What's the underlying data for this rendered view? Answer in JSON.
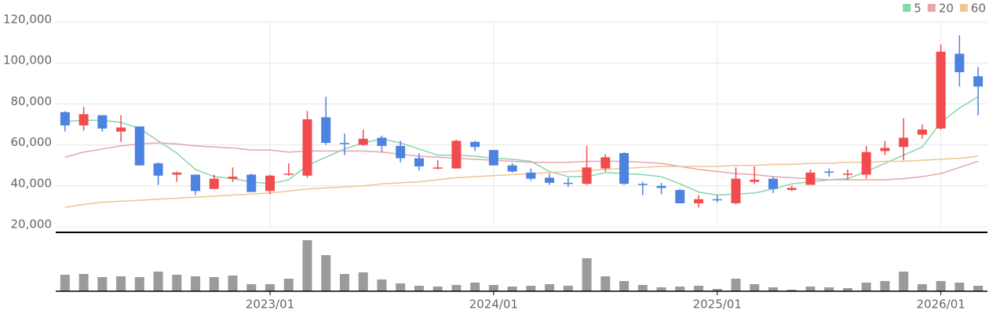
{
  "chart_data": {
    "type": "candlestick",
    "categories": [
      null,
      null,
      null,
      null,
      null,
      null,
      null,
      null,
      null,
      null,
      null,
      "2023/01",
      null,
      null,
      null,
      null,
      null,
      null,
      null,
      null,
      null,
      null,
      null,
      "2024/01",
      null,
      null,
      null,
      null,
      null,
      null,
      null,
      null,
      null,
      null,
      null,
      "2025/01",
      null,
      null,
      null,
      null,
      null,
      null,
      null,
      null,
      null,
      null,
      null,
      "2026/01",
      null,
      null
    ],
    "open": [
      76000,
      69500,
      74500,
      66500,
      69000,
      51000,
      45500,
      45500,
      38500,
      43500,
      45500,
      37500,
      45500,
      45000,
      73500,
      61000,
      60000,
      63500,
      59500,
      53500,
      48500,
      48500,
      61500,
      57500,
      50000,
      46500,
      44000,
      41500,
      41000,
      48500,
      56000,
      41000,
      40000,
      38000,
      31500,
      33500,
      31500,
      42000,
      43500,
      38000,
      40500,
      47000,
      45500,
      45500,
      57000,
      59000,
      65000,
      68000,
      104500,
      93500
    ],
    "high": [
      76500,
      78500,
      74500,
      74500,
      69000,
      51500,
      47000,
      45500,
      45500,
      49000,
      46000,
      45500,
      51000,
      76500,
      83500,
      65500,
      67500,
      64500,
      62000,
      56000,
      52500,
      62500,
      62000,
      57500,
      51000,
      48500,
      46000,
      44000,
      59500,
      55500,
      56500,
      42000,
      41500,
      38500,
      35500,
      35500,
      49000,
      49500,
      44500,
      40000,
      48000,
      48500,
      48000,
      59500,
      62000,
      73000,
      70000,
      109000,
      113500,
      98000
    ],
    "low": [
      66500,
      67000,
      66500,
      61500,
      50000,
      40500,
      42000,
      35500,
      38500,
      42000,
      37000,
      36000,
      45000,
      44000,
      60000,
      55000,
      59500,
      56500,
      51500,
      47500,
      48000,
      48500,
      57000,
      50000,
      46500,
      42500,
      40500,
      39500,
      40500,
      47000,
      40500,
      35500,
      36000,
      31500,
      29500,
      32000,
      31000,
      41000,
      36500,
      37500,
      40500,
      44500,
      43000,
      43500,
      55000,
      52500,
      63000,
      67500,
      88500,
      74500
    ],
    "close": [
      69500,
      75000,
      68000,
      68500,
      50000,
      45000,
      46500,
      37500,
      43500,
      44500,
      37000,
      45000,
      46000,
      72500,
      61000,
      60500,
      63000,
      59500,
      53500,
      49500,
      49000,
      62000,
      59000,
      50000,
      47000,
      43500,
      41500,
      41000,
      49000,
      54000,
      41000,
      40500,
      39000,
      31500,
      33500,
      33000,
      43500,
      43000,
      38500,
      39000,
      46500,
      46500,
      46000,
      56500,
      58500,
      63500,
      67500,
      105500,
      95500,
      88500
    ],
    "up_color": "#f24b4e",
    "down_color": "#4c82e0",
    "series": [
      {
        "name": "5",
        "color": "#86d6ab",
        "values": [
          71500,
          72000,
          72000,
          71000,
          68000,
          62000,
          56000,
          48000,
          44500,
          43500,
          42000,
          41000,
          43000,
          50000,
          54000,
          58000,
          61000,
          63000,
          61000,
          58000,
          55000,
          55000,
          54500,
          53500,
          53000,
          52000,
          47000,
          44500,
          44500,
          46500,
          46000,
          45500,
          44500,
          41000,
          37000,
          35500,
          36000,
          36500,
          38500,
          41000,
          42000,
          43000,
          43500,
          47000,
          51000,
          55000,
          59000,
          71000,
          78000,
          83500
        ]
      },
      {
        "name": "20",
        "color": "#e8a5ab",
        "values": [
          54000,
          56500,
          58000,
          59500,
          60500,
          61000,
          60500,
          59500,
          59000,
          58500,
          57500,
          57500,
          56500,
          57000,
          57000,
          57000,
          57000,
          56500,
          55500,
          54500,
          54000,
          53500,
          53000,
          52500,
          52000,
          51500,
          51500,
          51500,
          52000,
          52000,
          52000,
          51500,
          51000,
          49500,
          48000,
          47000,
          46000,
          45500,
          44500,
          44000,
          43500,
          43000,
          43000,
          43000,
          43000,
          43500,
          44500,
          46000,
          49000,
          52000
        ]
      },
      {
        "name": "60",
        "color": "#efc593",
        "values": [
          29500,
          31000,
          32000,
          32500,
          33000,
          33500,
          34000,
          34500,
          35000,
          35500,
          36000,
          36500,
          37500,
          38500,
          39000,
          39500,
          40000,
          41000,
          41500,
          42000,
          43000,
          44000,
          44500,
          45000,
          45500,
          46000,
          46500,
          47000,
          47500,
          48000,
          48500,
          49000,
          49500,
          49500,
          49500,
          49500,
          50000,
          50000,
          50500,
          50500,
          51000,
          51000,
          51500,
          51500,
          52000,
          52000,
          52500,
          53000,
          53500,
          54500
        ]
      }
    ],
    "volume": [
      21,
      22,
      18,
      19,
      18,
      25,
      21,
      19,
      18,
      20,
      9,
      9,
      16,
      65,
      46,
      22,
      24,
      15,
      10,
      7,
      6,
      8,
      11,
      8,
      6,
      7,
      9,
      7,
      42,
      19,
      13,
      8,
      5,
      6,
      7,
      3,
      16,
      9,
      5,
      2,
      6,
      5,
      4,
      11,
      13,
      25,
      9,
      13,
      11,
      7
    ],
    "volume_color": "#9b9b9b",
    "volume_ylim": [
      0,
      70
    ],
    "ylim": [
      20000,
      120000
    ],
    "yticks": [
      {
        "value": 20000,
        "label": "20,000"
      },
      {
        "value": 40000,
        "label": "40,000"
      },
      {
        "value": 60000,
        "label": "60,000"
      },
      {
        "value": 80000,
        "label": "80,000"
      },
      {
        "value": 100000,
        "label": "100,000"
      },
      {
        "value": 120000,
        "label": "120,000"
      }
    ],
    "grid": true,
    "legend": "top-right"
  }
}
